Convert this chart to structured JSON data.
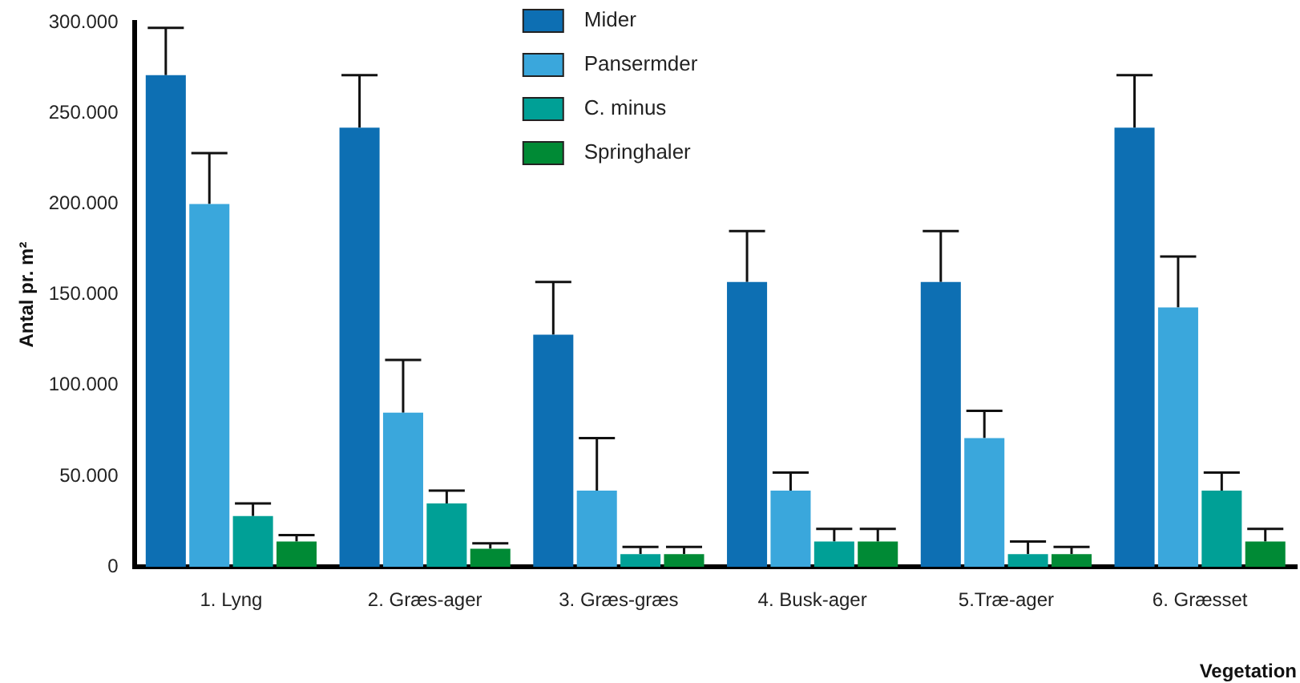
{
  "chart_data": {
    "type": "bar",
    "ylabel": "Antal pr. m²",
    "xlabel": "Vegetation",
    "categories": [
      "1. Lyng",
      "2. Græs-ager",
      "3. Græs-græs",
      "4. Busk-ager",
      "5.Træ-ager",
      "6. Græsset"
    ],
    "series": [
      {
        "name": "Mider",
        "color": "#0d6fb3",
        "values": [
          271000,
          242000,
          128000,
          157000,
          157000,
          242000
        ],
        "errors": [
          [
            271000,
            297000
          ],
          [
            242000,
            271000
          ],
          [
            128000,
            157000
          ],
          [
            157000,
            185000
          ],
          [
            157000,
            185000
          ],
          [
            242000,
            271000
          ]
        ]
      },
      {
        "name": "Pansermder",
        "color": "#3aa7dc",
        "values": [
          200000,
          85000,
          42000,
          42000,
          71000,
          143000
        ],
        "errors": [
          [
            200000,
            228000
          ],
          [
            85000,
            114000
          ],
          [
            42000,
            71000
          ],
          [
            42000,
            52000
          ],
          [
            71000,
            86000
          ],
          [
            143000,
            171000
          ]
        ]
      },
      {
        "name": "C. minus",
        "color": "#00a096",
        "values": [
          28000,
          35000,
          7000,
          14000,
          7000,
          42000
        ],
        "errors": [
          [
            28000,
            35000
          ],
          [
            35000,
            42000
          ],
          [
            7000,
            11000
          ],
          [
            14000,
            21000
          ],
          [
            7000,
            14000
          ],
          [
            42000,
            52000
          ]
        ]
      },
      {
        "name": "Springhaler",
        "color": "#008a35",
        "values": [
          14000,
          10000,
          7000,
          14000,
          7000,
          14000
        ],
        "errors": [
          [
            14000,
            17500
          ],
          [
            10000,
            13000
          ],
          [
            7000,
            11000
          ],
          [
            14000,
            21000
          ],
          [
            7000,
            11000
          ],
          [
            14000,
            21000
          ]
        ]
      }
    ],
    "ylim": [
      0,
      300000
    ],
    "yticks": [
      {
        "value": 0,
        "label": "0"
      },
      {
        "value": 50000,
        "label": "50.000"
      },
      {
        "value": 100000,
        "label": "100.000"
      },
      {
        "value": 150000,
        "label": "150.000"
      },
      {
        "value": 200000,
        "label": "200.000"
      },
      {
        "value": 250000,
        "label": "250.000"
      },
      {
        "value": 300000,
        "label": "300.000"
      }
    ],
    "grid": false,
    "legend": "top"
  }
}
